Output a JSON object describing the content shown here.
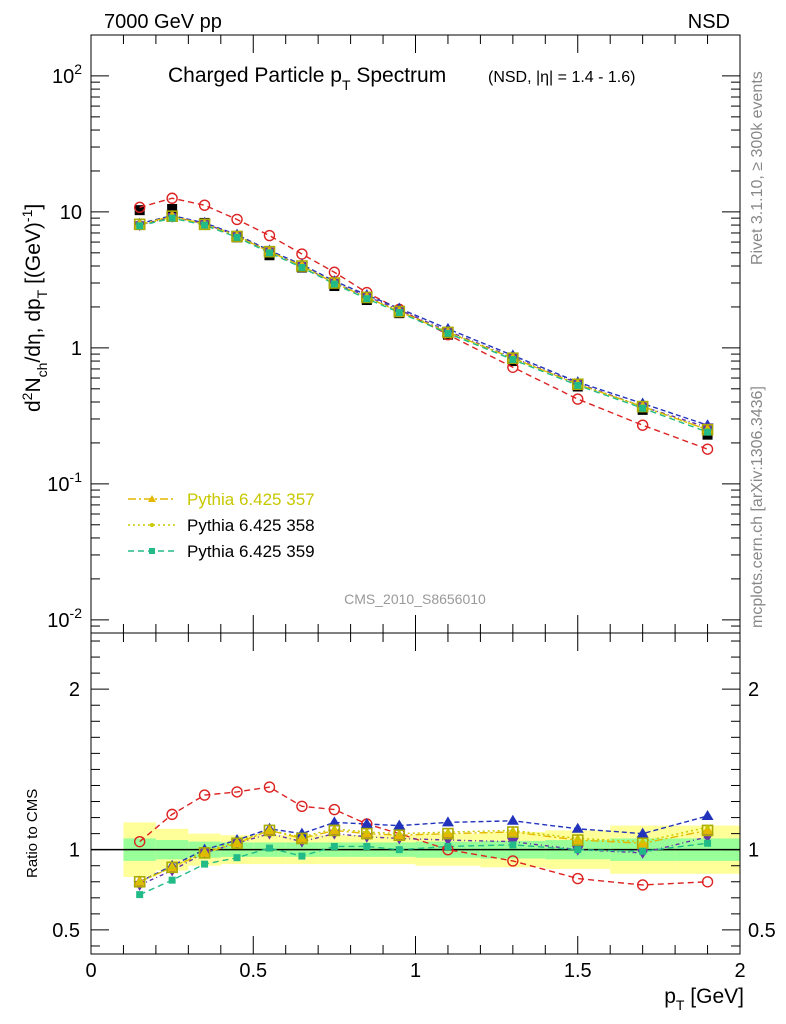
{
  "header": {
    "energy": "7000 GeV pp",
    "process": "NSD"
  },
  "side_labels": {
    "rivet": "Rivet 3.1.10, ≥ 300k events",
    "mcplots": "mcplots.cern.ch [arXiv:1306.3436]"
  },
  "watermark": "CMS_2010_S8656010",
  "chart_data": [
    {
      "type": "line",
      "panel": "main",
      "title": "Charged Particle p_T Spectrum",
      "subtitle": "(NSD, |η| = 1.4 - 1.6)",
      "ylabel": "d²N_ch/dη dp_T [(GeV)⁻¹]",
      "xlim": [
        0,
        2
      ],
      "ylim": [
        0.008,
        200
      ],
      "yscale": "log",
      "yticks": [
        {
          "v": 0.01,
          "label": "10^-2"
        },
        {
          "v": 0.1,
          "label": "10^-1"
        },
        {
          "v": 1,
          "label": "1"
        },
        {
          "v": 10,
          "label": "10"
        },
        {
          "v": 100,
          "label": "10^2"
        }
      ],
      "x": [
        0.15,
        0.25,
        0.35,
        0.45,
        0.55,
        0.65,
        0.75,
        0.85,
        0.95,
        1.1,
        1.3,
        1.5,
        1.7,
        1.9
      ],
      "data": {
        "name": "CMS",
        "values": [
          10.3,
          10.5,
          8.3,
          6.5,
          4.8,
          3.9,
          2.85,
          2.25,
          1.8,
          1.25,
          0.8,
          0.52,
          0.35,
          0.23
        ]
      },
      "series": [
        {
          "name": "red",
          "color": "#dd2222",
          "values": [
            10.8,
            12.6,
            11.2,
            8.8,
            6.7,
            4.9,
            3.6,
            2.55,
            1.92,
            1.25,
            0.72,
            0.42,
            0.27,
            0.18
          ]
        },
        {
          "name": "blue-dash",
          "color": "#2233bb",
          "values": [
            8.2,
            9.4,
            8.3,
            6.8,
            5.2,
            4.1,
            3.1,
            2.45,
            1.95,
            1.38,
            0.88,
            0.56,
            0.39,
            0.27
          ]
        },
        {
          "name": "purple",
          "color": "#6633aa",
          "values": [
            8.0,
            9.2,
            8.2,
            6.7,
            5.1,
            4.0,
            3.0,
            2.4,
            1.9,
            1.33,
            0.85,
            0.55,
            0.37,
            0.26
          ]
        },
        {
          "name": "Pythia 6.425 357",
          "color": "#e5b800",
          "values": [
            8.1,
            9.3,
            8.1,
            6.6,
            5.1,
            4.0,
            3.0,
            2.35,
            1.85,
            1.3,
            0.84,
            0.54,
            0.37,
            0.25
          ]
        },
        {
          "name": "Pythia 6.425 358",
          "color": "#c8c800",
          "values": [
            8.0,
            9.2,
            8.2,
            6.7,
            5.1,
            4.0,
            3.0,
            2.35,
            1.86,
            1.31,
            0.84,
            0.54,
            0.37,
            0.25
          ]
        },
        {
          "name": "Pythia 6.425 359",
          "color": "#22bb88",
          "values": [
            7.9,
            9.0,
            8.0,
            6.5,
            5.0,
            3.9,
            2.95,
            2.3,
            1.82,
            1.28,
            0.82,
            0.53,
            0.36,
            0.24
          ]
        }
      ],
      "legend": [
        "Pythia 6.425 357",
        "Pythia 6.425 358",
        "Pythia 6.425 359"
      ],
      "legend_position": "lower-left"
    },
    {
      "type": "line",
      "panel": "ratio",
      "xlabel": "p_T [GeV]",
      "ylabel": "Ratio to CMS",
      "xlim": [
        0,
        2
      ],
      "ylim": [
        0.35,
        2.35
      ],
      "xticks": [
        {
          "v": 0,
          "label": "0"
        },
        {
          "v": 0.5,
          "label": "0.5"
        },
        {
          "v": 1,
          "label": "1"
        },
        {
          "v": 1.5,
          "label": "1.5"
        },
        {
          "v": 2,
          "label": "2"
        }
      ],
      "yticks": [
        {
          "v": 0.5,
          "label": "0.5"
        },
        {
          "v": 1,
          "label": "1"
        },
        {
          "v": 2,
          "label": "2"
        }
      ],
      "bands": {
        "x_edges": [
          0.1,
          0.2,
          0.3,
          0.4,
          0.5,
          0.6,
          0.7,
          0.8,
          0.9,
          1.0,
          1.2,
          1.4,
          1.6,
          1.8,
          2.0
        ],
        "yellow": [
          0.17,
          0.13,
          0.1,
          0.09,
          0.09,
          0.09,
          0.09,
          0.09,
          0.09,
          0.1,
          0.11,
          0.12,
          0.15,
          0.15
        ],
        "green": [
          0.07,
          0.06,
          0.05,
          0.045,
          0.045,
          0.045,
          0.045,
          0.045,
          0.045,
          0.05,
          0.055,
          0.06,
          0.07,
          0.07
        ]
      },
      "x": [
        0.15,
        0.25,
        0.35,
        0.45,
        0.55,
        0.65,
        0.75,
        0.85,
        0.95,
        1.1,
        1.3,
        1.5,
        1.7,
        1.9
      ],
      "series": [
        {
          "name": "red",
          "color": "#dd2222",
          "values": [
            1.05,
            1.22,
            1.34,
            1.36,
            1.39,
            1.27,
            1.25,
            1.16,
            1.1,
            1.0,
            0.93,
            0.82,
            0.78,
            0.8
          ]
        },
        {
          "name": "blue-dash",
          "color": "#2233bb",
          "values": [
            0.8,
            0.9,
            1.0,
            1.06,
            1.13,
            1.1,
            1.17,
            1.16,
            1.15,
            1.17,
            1.18,
            1.13,
            1.1,
            1.21
          ]
        },
        {
          "name": "purple",
          "color": "#6633aa",
          "values": [
            0.78,
            0.87,
            0.98,
            1.04,
            1.1,
            1.05,
            1.1,
            1.08,
            1.07,
            1.06,
            1.05,
            1.0,
            0.98,
            1.08
          ]
        },
        {
          "name": "Pythia 6.425 357",
          "color": "#e5b800",
          "values": [
            0.8,
            0.89,
            0.98,
            1.04,
            1.12,
            1.07,
            1.12,
            1.1,
            1.09,
            1.1,
            1.11,
            1.06,
            1.04,
            1.12
          ]
        },
        {
          "name": "Pythia 6.425 358",
          "color": "#c8c800",
          "values": [
            0.8,
            0.89,
            0.99,
            1.05,
            1.12,
            1.08,
            1.13,
            1.11,
            1.1,
            1.11,
            1.12,
            1.07,
            1.05,
            1.14
          ]
        },
        {
          "name": "Pythia 6.425 359",
          "color": "#22bb88",
          "values": [
            0.72,
            0.81,
            0.91,
            0.95,
            1.01,
            0.96,
            1.02,
            1.02,
            1.0,
            1.02,
            1.03,
            1.0,
            0.99,
            1.04
          ]
        }
      ]
    }
  ]
}
